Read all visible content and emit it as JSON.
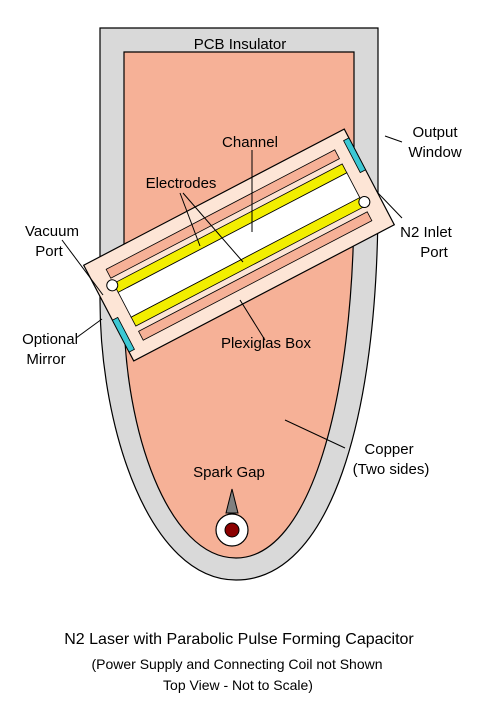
{
  "labels": {
    "pcb_insulator": "PCB Insulator",
    "channel": "Channel",
    "electrodes": "Electrodes",
    "output_window_1": "Output",
    "output_window_2": "Window",
    "vacuum_port_1": "Vacuum",
    "vacuum_port_2": "Port",
    "n2_inlet_1": "N2 Inlet",
    "n2_inlet_2": "Port",
    "optional_mirror_1": "Optional",
    "optional_mirror_2": "Mirror",
    "plexiglas_box": "Plexiglas Box",
    "copper_1": "Copper",
    "copper_2": "(Two sides)",
    "spark_gap": "Spark Gap"
  },
  "caption": {
    "title": "N2 Laser with Parabolic Pulse Forming Capacitor",
    "line2": "(Power Supply and Connecting Coil not Shown",
    "line3": "Top View - Not to Scale)"
  },
  "colors": {
    "insulator": "#d9d9d9",
    "copper": "#f6b197",
    "plexiglas": "#fde5d6",
    "electrode": "#f2ee00",
    "window": "#3cc8d4",
    "spark_center": "#8b0000"
  }
}
